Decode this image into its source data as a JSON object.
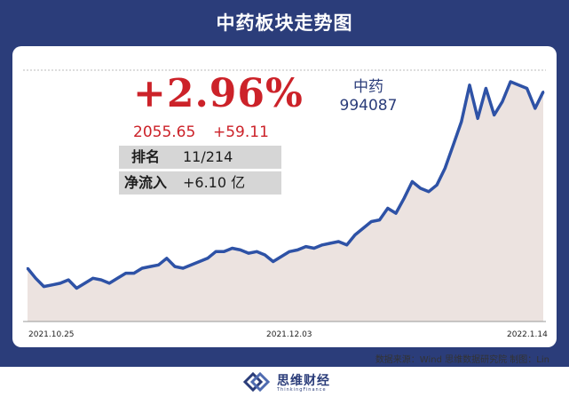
{
  "header": {
    "title": "中药板块走势图"
  },
  "summary": {
    "change_pct": "+2.96%",
    "price": "2055.65",
    "change": "+59.11",
    "rank_label": "排名",
    "rank_value": "11/214",
    "inflow_label": "净流入",
    "inflow_value": "+6.10 亿"
  },
  "index": {
    "name": "中药",
    "code": "994087"
  },
  "chart_data": {
    "type": "line",
    "title": "中药板块走势图",
    "x_ticks": [
      "2021.10.25",
      "2021.12.03",
      "2022.1.14"
    ],
    "ylim": [
      1300,
      2100
    ],
    "grid": false,
    "series": [
      {
        "name": "中药",
        "color": "#2e52a6",
        "values": [
          1460,
          1430,
          1405,
          1410,
          1415,
          1425,
          1400,
          1415,
          1430,
          1425,
          1415,
          1430,
          1445,
          1445,
          1460,
          1465,
          1470,
          1490,
          1465,
          1460,
          1470,
          1480,
          1490,
          1510,
          1510,
          1520,
          1515,
          1505,
          1510,
          1500,
          1480,
          1495,
          1510,
          1515,
          1525,
          1520,
          1530,
          1535,
          1540,
          1530,
          1560,
          1580,
          1600,
          1605,
          1640,
          1625,
          1670,
          1720,
          1700,
          1690,
          1710,
          1760,
          1830,
          1900,
          2010,
          1910,
          2000,
          1920,
          1960,
          2020,
          2010,
          2000,
          1940,
          1990
        ]
      }
    ],
    "colors": {
      "line": "#2e52a6",
      "area": "#ece3e0",
      "frame": "#2b3d7a",
      "accent": "#cc2229"
    }
  },
  "footer": {
    "source": "数据来源：Wind  思维数据研究院    制图：Lin",
    "brand_cn": "思维财经",
    "brand_en": "ThinkingFinance"
  }
}
